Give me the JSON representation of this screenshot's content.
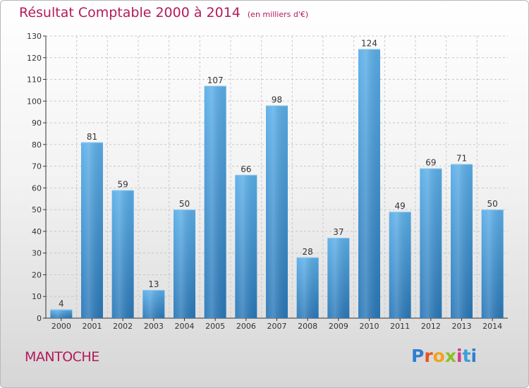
{
  "header": {
    "title": "Résultat Comptable 2000 à 2014",
    "unit": "(en milliers d'€)"
  },
  "footer": {
    "place": "MANTOCHE",
    "logo": "Proxiti"
  },
  "colors": {
    "title": "#b5195b",
    "bar_top": "#5aaee8",
    "bar_bottom": "#2a78b8",
    "grid": "#c8c8c8",
    "axis": "#333333"
  },
  "chart_data": {
    "type": "bar",
    "title": "Résultat Comptable 2000 à 2014",
    "xlabel": "",
    "ylabel": "",
    "ylim": [
      0,
      130
    ],
    "yticks": [
      0,
      10,
      20,
      30,
      40,
      50,
      60,
      70,
      80,
      90,
      100,
      110,
      120,
      130
    ],
    "grid": true,
    "categories": [
      "2000",
      "2001",
      "2002",
      "2003",
      "2004",
      "2005",
      "2006",
      "2007",
      "2008",
      "2009",
      "2010",
      "2011",
      "2012",
      "2013",
      "2014"
    ],
    "values": [
      4,
      81,
      59,
      13,
      50,
      107,
      66,
      98,
      28,
      37,
      124,
      49,
      69,
      71,
      50
    ]
  }
}
